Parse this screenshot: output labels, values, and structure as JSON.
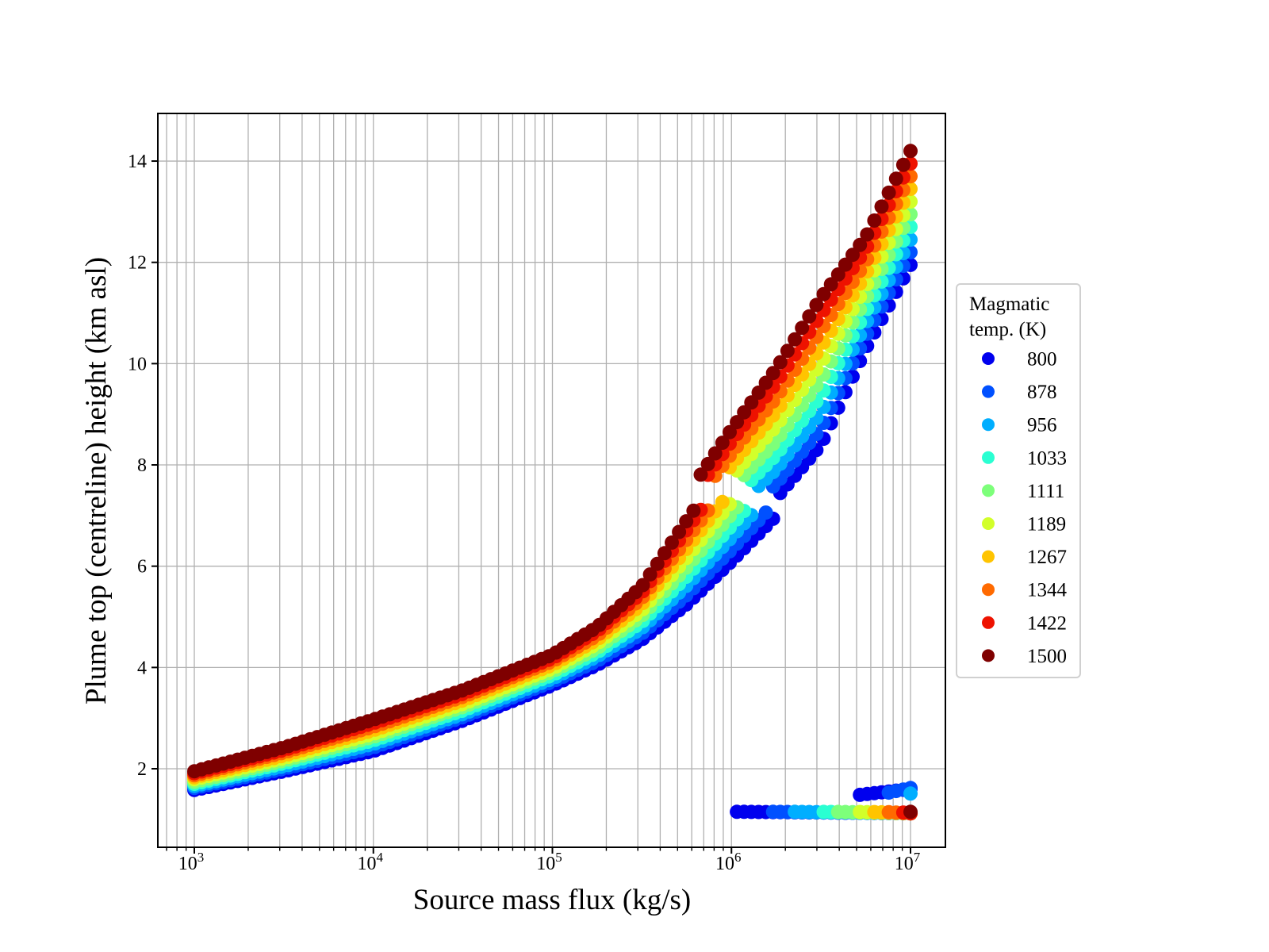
{
  "chart_data": {
    "type": "scatter",
    "title": "",
    "xlabel": "Source mass flux (kg/s)",
    "ylabel": "Plume top (centreline) height (km asl)",
    "xscale": "log",
    "xlim_log10": [
      2.796,
      7.2
    ],
    "ylim": [
      0.45,
      14.94
    ],
    "grid": "on (major and minor)",
    "xticks": [
      {
        "value": 1000,
        "base": "10",
        "exp": "3"
      },
      {
        "value": 10000,
        "base": "10",
        "exp": "4"
      },
      {
        "value": 100000,
        "base": "10",
        "exp": "5"
      },
      {
        "value": 1000000,
        "base": "10",
        "exp": "6"
      },
      {
        "value": 10000000,
        "base": "10",
        "exp": "7"
      }
    ],
    "yticks": [
      {
        "value": 2,
        "label": "2"
      },
      {
        "value": 4,
        "label": "4"
      },
      {
        "value": 6,
        "label": "6"
      },
      {
        "value": 8,
        "label": "8"
      },
      {
        "value": 10,
        "label": "10"
      },
      {
        "value": 12,
        "label": "12"
      },
      {
        "value": 14,
        "label": "14"
      }
    ],
    "sampling": {
      "log10x_start": 3,
      "log10x_end": 7,
      "count": 100
    },
    "legend": {
      "title_line1": "Magmatic",
      "title_line2": "temp. (K)",
      "placement": "right, outside plot"
    },
    "series": [
      {
        "name": "800",
        "color": "#0000ee",
        "jump_log10x": 6.25,
        "pre": [
          [
            3,
            1.58
          ],
          [
            3.5,
            1.95
          ],
          [
            4,
            2.35
          ],
          [
            4.5,
            2.95
          ],
          [
            5,
            3.65
          ],
          [
            5.25,
            4.05
          ],
          [
            5.5,
            4.55
          ],
          [
            5.75,
            5.25
          ],
          [
            6,
            6.1
          ],
          [
            6.25,
            7.0
          ]
        ],
        "post": [
          [
            6.25,
            7.35
          ],
          [
            6.5,
            8.4
          ],
          [
            6.75,
            10.3
          ],
          [
            7,
            11.95
          ]
        ],
        "collapse": {
          "from_log10x": 6.03,
          "h_start": 1.15,
          "h_end": 1.12
        },
        "secondary": {
          "from_log10x": 6.68,
          "h_start": 1.47,
          "h_end": 1.6
        }
      },
      {
        "name": "878",
        "color": "#0050ff",
        "jump_log10x": 6.2,
        "pre": [
          [
            3,
            1.62
          ],
          [
            3.5,
            2.0
          ],
          [
            4,
            2.42
          ],
          [
            4.5,
            3.02
          ],
          [
            5,
            3.72
          ],
          [
            5.25,
            4.13
          ],
          [
            5.5,
            4.67
          ],
          [
            5.75,
            5.43
          ],
          [
            6,
            6.33
          ],
          [
            6.2,
            7.09
          ]
        ],
        "post": [
          [
            6.2,
            7.47
          ],
          [
            6.25,
            7.63
          ],
          [
            6.5,
            8.72
          ],
          [
            6.75,
            10.54
          ],
          [
            7,
            12.2
          ]
        ],
        "collapse": {
          "from_log10x": 6.2,
          "h_start": 1.15,
          "h_end": 1.12
        },
        "secondary": {
          "from_log10x": 6.84,
          "h_start": 1.5,
          "h_end": 1.62
        }
      },
      {
        "name": "956",
        "color": "#00aeff",
        "jump_log10x": 6.15,
        "pre": [
          [
            3,
            1.66
          ],
          [
            3.5,
            2.05
          ],
          [
            4,
            2.49
          ],
          [
            4.5,
            3.08
          ],
          [
            5,
            3.78
          ],
          [
            5.25,
            4.22
          ],
          [
            5.5,
            4.78
          ],
          [
            5.75,
            5.62
          ],
          [
            6,
            6.57
          ],
          [
            6.15,
            7.16
          ]
        ],
        "post": [
          [
            6.15,
            7.58
          ],
          [
            6.25,
            7.92
          ],
          [
            6.5,
            9.04
          ],
          [
            6.75,
            10.79
          ],
          [
            7,
            12.45
          ]
        ],
        "collapse": {
          "from_log10x": 6.32,
          "h_start": 1.15,
          "h_end": 1.12
        },
        "secondary": {
          "from_log10x": 6.99,
          "h_start": 1.51,
          "h_end": 1.51
        }
      },
      {
        "name": "1033",
        "color": "#2affd2",
        "jump_log10x": 6.1,
        "pre": [
          [
            3,
            1.7
          ],
          [
            3.5,
            2.11
          ],
          [
            4,
            2.56
          ],
          [
            4.5,
            3.15
          ],
          [
            5,
            3.85
          ],
          [
            5.25,
            4.3
          ],
          [
            5.5,
            4.9
          ],
          [
            5.75,
            5.8
          ],
          [
            6,
            6.8
          ],
          [
            6.1,
            7.21
          ]
        ],
        "post": [
          [
            6.1,
            7.66
          ],
          [
            6.25,
            8.2
          ],
          [
            6.5,
            9.37
          ],
          [
            6.75,
            11.03
          ],
          [
            7,
            12.7
          ]
        ],
        "collapse": {
          "from_log10x": 6.48,
          "h_start": 1.15,
          "h_end": 1.12
        }
      },
      {
        "name": "1111",
        "color": "#7dff7a",
        "jump_log10x": 6.05,
        "pre": [
          [
            3,
            1.74
          ],
          [
            3.5,
            2.16
          ],
          [
            4,
            2.63
          ],
          [
            4.5,
            3.22
          ],
          [
            5,
            3.92
          ],
          [
            5.25,
            4.38
          ],
          [
            5.5,
            5.02
          ],
          [
            5.75,
            5.98
          ],
          [
            6,
            7.03
          ],
          [
            6.05,
            7.25
          ]
        ],
        "post": [
          [
            6.05,
            7.72
          ],
          [
            6.25,
            8.48
          ],
          [
            6.5,
            9.69
          ],
          [
            6.75,
            11.28
          ],
          [
            7,
            12.95
          ]
        ],
        "collapse": {
          "from_log10x": 6.56,
          "h_start": 1.15,
          "h_end": 1.12
        }
      },
      {
        "name": "1189",
        "color": "#d2ff2a",
        "jump_log10x": 6.0,
        "pre": [
          [
            3,
            1.79
          ],
          [
            3.5,
            2.21
          ],
          [
            4,
            2.69
          ],
          [
            4.5,
            3.28
          ],
          [
            5,
            3.98
          ],
          [
            5.25,
            4.47
          ],
          [
            5.5,
            5.13
          ],
          [
            5.75,
            6.17
          ],
          [
            6,
            7.27
          ]
        ],
        "post": [
          [
            6,
            7.77
          ],
          [
            6.25,
            8.77
          ],
          [
            6.5,
            10.01
          ],
          [
            6.75,
            11.52
          ],
          [
            7,
            13.2
          ]
        ],
        "collapse": {
          "from_log10x": 6.68,
          "h_start": 1.15,
          "h_end": 1.12
        }
      },
      {
        "name": "1267",
        "color": "#ffc400",
        "jump_log10x": 5.95,
        "pre": [
          [
            3,
            1.83
          ],
          [
            3.5,
            2.26
          ],
          [
            4,
            2.76
          ],
          [
            4.5,
            3.35
          ],
          [
            5,
            4.05
          ],
          [
            5.25,
            4.55
          ],
          [
            5.5,
            5.25
          ],
          [
            5.75,
            6.35
          ],
          [
            5.95,
            7.27
          ]
        ],
        "post": [
          [
            5.95,
            7.76
          ],
          [
            6,
            8.0
          ],
          [
            6.25,
            9.05
          ],
          [
            6.5,
            10.33
          ],
          [
            6.75,
            11.77
          ],
          [
            7,
            13.45
          ]
        ],
        "collapse": {
          "from_log10x": 6.76,
          "h_start": 1.15,
          "h_end": 1.12
        }
      },
      {
        "name": "1344",
        "color": "#ff6a00",
        "jump_log10x": 5.9,
        "pre": [
          [
            3,
            1.87
          ],
          [
            3.5,
            2.32
          ],
          [
            4,
            2.83
          ],
          [
            4.5,
            3.42
          ],
          [
            5,
            4.12
          ],
          [
            5.25,
            4.63
          ],
          [
            5.5,
            5.37
          ],
          [
            5.75,
            6.53
          ],
          [
            5.9,
            7.25
          ]
        ],
        "post": [
          [
            5.9,
            7.74
          ],
          [
            6,
            8.23
          ],
          [
            6.25,
            9.33
          ],
          [
            6.5,
            10.66
          ],
          [
            6.75,
            12.01
          ],
          [
            7,
            13.7
          ]
        ],
        "collapse": {
          "from_log10x": 6.84,
          "h_start": 1.15,
          "h_end": 1.12
        }
      },
      {
        "name": "1422",
        "color": "#ee1200",
        "jump_log10x": 5.85,
        "pre": [
          [
            3,
            1.91
          ],
          [
            3.5,
            2.37
          ],
          [
            4,
            2.9
          ],
          [
            4.5,
            3.48
          ],
          [
            5,
            4.18
          ],
          [
            5.25,
            4.72
          ],
          [
            5.5,
            5.48
          ],
          [
            5.75,
            6.72
          ],
          [
            5.85,
            7.22
          ]
        ],
        "post": [
          [
            5.85,
            7.71
          ],
          [
            6,
            8.47
          ],
          [
            6.25,
            9.62
          ],
          [
            6.5,
            10.98
          ],
          [
            6.75,
            12.26
          ],
          [
            7,
            13.95
          ]
        ],
        "collapse": {
          "from_log10x": 6.92,
          "h_start": 1.15,
          "h_end": 1.12
        }
      },
      {
        "name": "1500",
        "color": "#7f0000",
        "jump_log10x": 5.8,
        "pre": [
          [
            3,
            1.95
          ],
          [
            3.5,
            2.42
          ],
          [
            4,
            2.97
          ],
          [
            4.5,
            3.55
          ],
          [
            5,
            4.25
          ],
          [
            5.25,
            4.8
          ],
          [
            5.5,
            5.6
          ],
          [
            5.75,
            6.9
          ],
          [
            5.8,
            7.16
          ]
        ],
        "post": [
          [
            5.8,
            7.66
          ],
          [
            6,
            8.7
          ],
          [
            6.25,
            9.9
          ],
          [
            6.5,
            11.3
          ],
          [
            6.75,
            12.5
          ],
          [
            7,
            14.2
          ]
        ],
        "collapse": {
          "from_log10x": 6.99,
          "h_start": 1.15,
          "h_end": 1.15
        }
      }
    ]
  }
}
